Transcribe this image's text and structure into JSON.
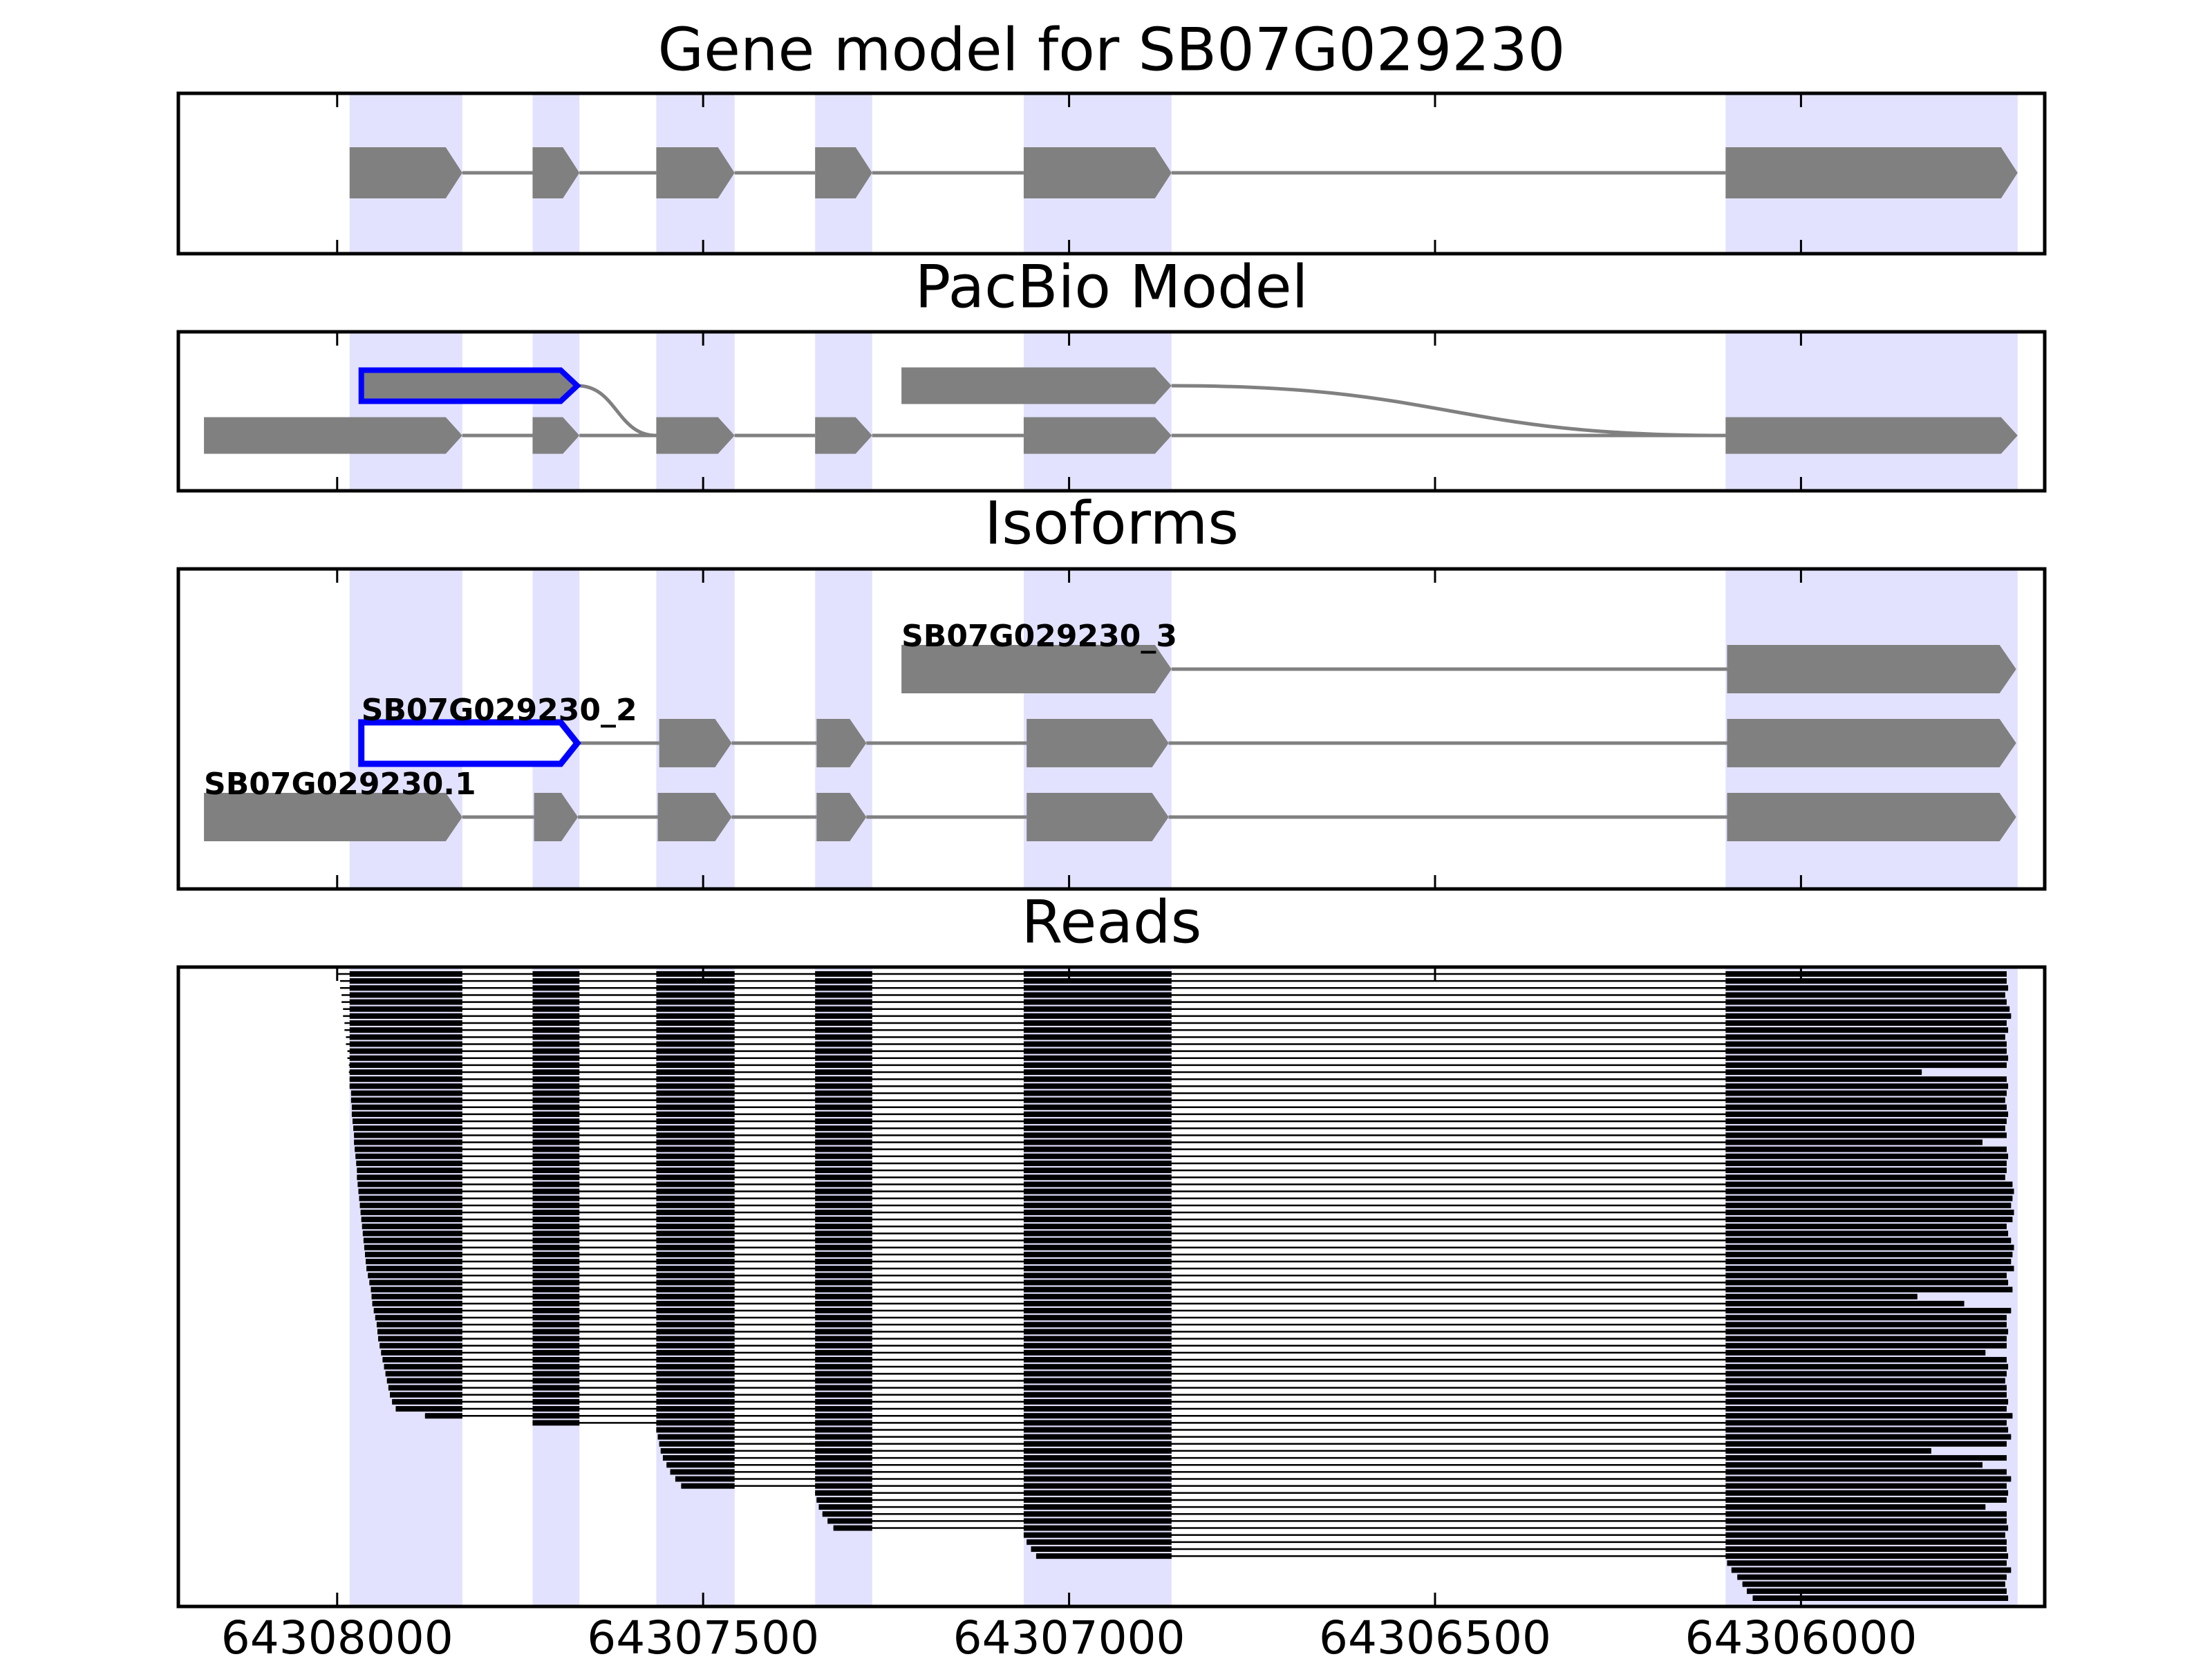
{
  "chart_data": {
    "type": "gene-tracks",
    "xlim": [
      64308217,
      64305667
    ],
    "xticks": [
      64308000,
      64307500,
      64307000,
      64306500,
      64306000
    ],
    "exon_color": "#808080",
    "highlight_color": "#0000ff",
    "shade_color": "#e2e2ff",
    "read_color": "#000000",
    "panels": [
      {
        "kind": "gene",
        "title": "Gene model for SB07G029230",
        "exons": [
          [
            64307983,
            64307829
          ],
          [
            64307733,
            64307669
          ],
          [
            64307564,
            64307457
          ],
          [
            64307347,
            64307269
          ],
          [
            64307062,
            64306860
          ],
          [
            64306103,
            64305704
          ]
        ]
      },
      {
        "kind": "pacbio",
        "title": "PacBio Model",
        "rows": [
          [
            [
              64307967,
              64307672
            ],
            [
              64307229,
              64306860
            ]
          ],
          [
            [
              64308182,
              64307829
            ],
            [
              64307733,
              64307669
            ],
            [
              64307564,
              64307457
            ],
            [
              64307347,
              64307269
            ],
            [
              64307062,
              64306860
            ],
            [
              64306103,
              64305704
            ]
          ]
        ],
        "links": [
          [
            0,
            0,
            1,
            2
          ],
          [
            0,
            1,
            1,
            5
          ]
        ],
        "highlight": [
          0,
          0
        ]
      },
      {
        "kind": "isoforms",
        "title": "Isoforms",
        "isoforms": [
          {
            "name": "SB07G029230_3",
            "exons": [
              [
                64307229,
                64306860
              ],
              [
                64306101,
                64305706
              ]
            ]
          },
          {
            "name": "SB07G029230_2",
            "outline": 0,
            "exons": [
              [
                64307967,
                64307672
              ],
              [
                64307560,
                64307461
              ],
              [
                64307345,
                64307277
              ],
              [
                64307058,
                64306864
              ],
              [
                64306101,
                64305706
              ]
            ]
          },
          {
            "name": "SB07G029230.1",
            "exons": [
              [
                64308182,
                64307829
              ],
              [
                64307731,
                64307671
              ],
              [
                64307562,
                64307461
              ],
              [
                64307345,
                64307277
              ],
              [
                64307058,
                64306864
              ],
              [
                64306101,
                64305706
              ]
            ]
          }
        ]
      },
      {
        "kind": "reads",
        "title": "Reads",
        "starts": [
          64308000,
          64307996,
          64307996,
          64307994,
          64307994,
          64307992,
          64307992,
          64307990,
          64307990,
          64307988,
          64307988,
          64307986,
          64307986,
          64307984,
          64307984,
          64307983,
          64307983,
          64307981,
          64307981,
          64307980,
          64307980,
          64307979,
          64307978,
          64307977,
          64307977,
          64307976,
          64307975,
          64307974,
          64307973,
          64307973,
          64307972,
          64307971,
          64307970,
          64307969,
          64307968,
          64307967,
          64307966,
          64307965,
          64307964,
          64307963,
          64307962,
          64307961,
          64307960,
          64307958,
          64307956,
          64307954,
          64307953,
          64307952,
          64307950,
          64307948,
          64307946,
          64307945,
          64307944,
          64307942,
          64307940,
          64307938,
          64307936,
          64307934,
          64307932,
          64307930,
          64307928,
          64307925,
          64307920,
          64307880,
          64307733,
          64307564,
          64307562,
          64307560,
          64307558,
          64307555,
          64307550,
          64307545,
          64307538,
          64307530,
          64307347,
          64307345,
          64307342,
          64307337,
          64307330,
          64307322,
          64307062,
          64307058,
          64307052,
          64307045,
          64306101,
          64306095,
          64306087,
          64306080,
          64306074,
          64306066
        ],
        "ends": [
          64305719,
          64305719,
          64305717,
          64305721,
          64305719,
          64305715,
          64305713,
          64305719,
          64305717,
          64305721,
          64305719,
          64305719,
          64305717,
          64305719,
          64305835,
          64305719,
          64305717,
          64305719,
          64305721,
          64305719,
          64305717,
          64305719,
          64305721,
          64305719,
          64305752,
          64305719,
          64305717,
          64305719,
          64305719,
          64305721,
          64305711,
          64305709,
          64305711,
          64305713,
          64305709,
          64305711,
          64305719,
          64305717,
          64305713,
          64305709,
          64305711,
          64305713,
          64305709,
          64305719,
          64305717,
          64305711,
          64305841,
          64305777,
          64305713,
          64305719,
          64305719,
          64305717,
          64305719,
          64305719,
          64305748,
          64305719,
          64305717,
          64305719,
          64305721,
          64305719,
          64305719,
          64305717,
          64305719,
          64305711,
          64305719,
          64305717,
          64305713,
          64305719,
          64305822,
          64305719,
          64305752,
          64305719,
          64305713,
          64305719,
          64305717,
          64305719,
          64305748,
          64305719,
          64305719,
          64305717,
          64305721,
          64305719,
          64305719,
          64305717,
          64305719,
          64305713,
          64305719,
          64305721,
          64305719,
          64305717
        ]
      }
    ]
  }
}
